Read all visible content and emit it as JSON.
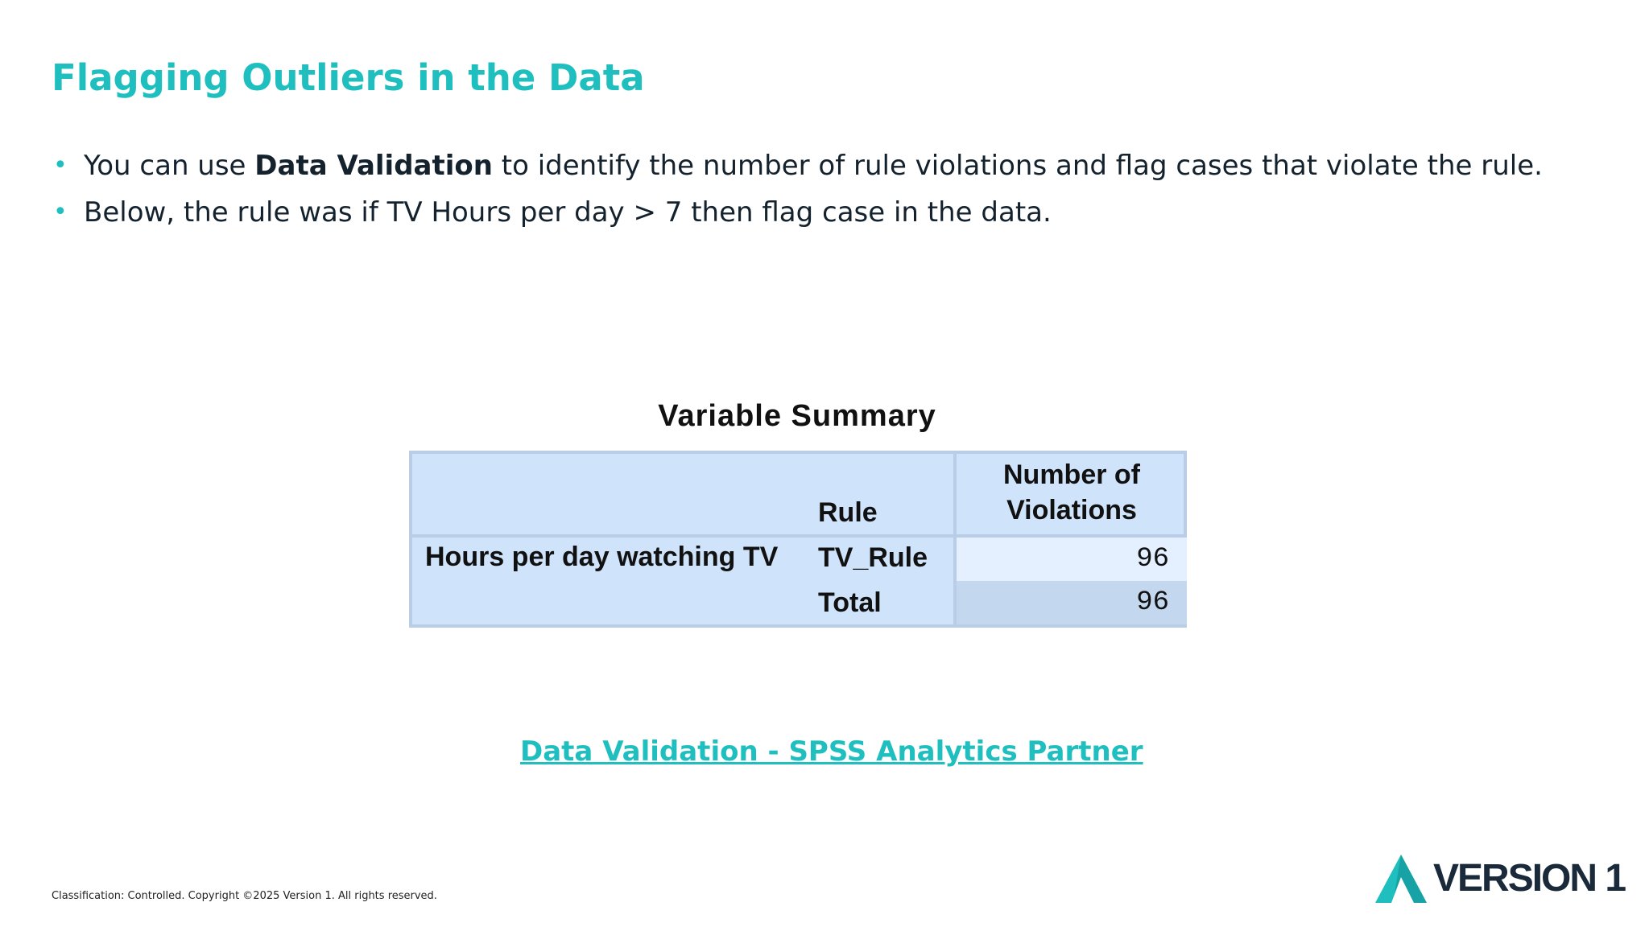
{
  "slide": {
    "title": "Flagging Outliers in the Data",
    "bullets": [
      {
        "before": "You can use ",
        "bold": "Data Validation",
        "after": " to identify the number of rule violations and flag cases that violate the rule."
      },
      {
        "text": "Below, the rule was if TV Hours per day > 7 then flag case in the data."
      }
    ]
  },
  "table": {
    "title": "Variable Summary",
    "header_rule": "Rule",
    "header_violations": "Number of Violations",
    "row_label": "Hours per day watching TV",
    "rows": [
      {
        "rule": "TV_Rule",
        "violations": "96"
      },
      {
        "rule": "Total",
        "violations": "96"
      }
    ]
  },
  "link": {
    "text": "Data Validation - SPSS Analytics Partner"
  },
  "footer": {
    "text": "Classification: Controlled. Copyright ©2025 Version 1. All rights reserved."
  },
  "logo": {
    "text": "VERSION 1",
    "icon": "version1-triangle-icon"
  },
  "colors": {
    "accent": "#1fbfbf",
    "table_bg": "#cfe3fa",
    "body_text": "#14222e"
  }
}
